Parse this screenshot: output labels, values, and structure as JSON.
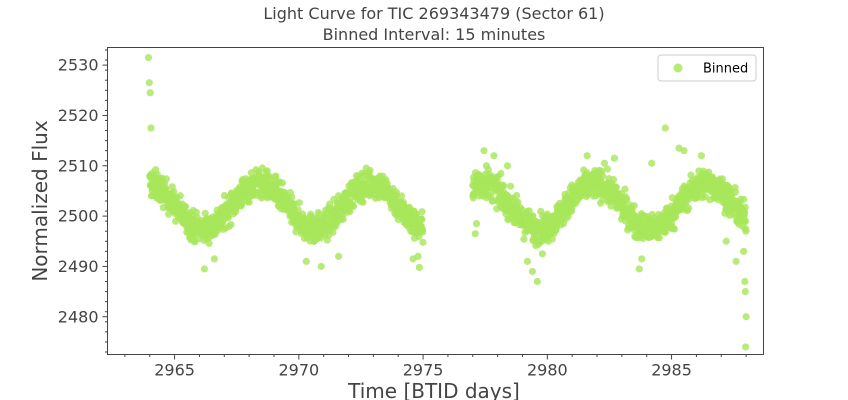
{
  "chart_data": {
    "type": "scatter",
    "title": "Light Curve for TIC 269343479 (Sector 61)",
    "subtitle": "Binned Interval: 15 minutes",
    "xlabel": "Time [BTID days]",
    "ylabel": "Normalized Flux",
    "xlim": [
      2962.3,
      2988.7
    ],
    "ylim": [
      2472.5,
      2533.5
    ],
    "xticks": [
      2965,
      2970,
      2975,
      2980,
      2985
    ],
    "yticks": [
      2480,
      2490,
      2500,
      2510,
      2520,
      2530
    ],
    "grid": false,
    "legend": {
      "position": "top-right"
    },
    "color": "#a8e65a",
    "series": [
      {
        "name": "Binned",
        "baseline": 2502,
        "amplitude": 4.5,
        "period_days": 4.5,
        "phase_peak_day": 2968.4,
        "scatter": 2.6,
        "segments": [
          [
            2964.0,
            2975.0
          ],
          [
            2977.0,
            2988.0
          ]
        ],
        "outliers": [
          [
            2963.95,
            2531.5
          ],
          [
            2963.98,
            2526.5
          ],
          [
            2964.02,
            2524.5
          ],
          [
            2964.05,
            2517.5
          ],
          [
            2964.1,
            2508.5
          ],
          [
            2974.85,
            2489.8
          ],
          [
            2974.8,
            2492.0
          ],
          [
            2977.1,
            2496.5
          ],
          [
            2977.15,
            2498.5
          ],
          [
            2977.25,
            2504.0
          ],
          [
            2977.3,
            2507.5
          ],
          [
            2977.45,
            2513.0
          ],
          [
            2977.55,
            2510.0
          ],
          [
            2977.85,
            2512.0
          ],
          [
            2978.4,
            2510.0
          ],
          [
            2979.4,
            2489.0
          ],
          [
            2979.6,
            2487.0
          ],
          [
            2979.2,
            2491.0
          ],
          [
            2979.8,
            2492.5
          ],
          [
            2981.6,
            2512.0
          ],
          [
            2982.3,
            2510.5
          ],
          [
            2982.7,
            2511.5
          ],
          [
            2983.7,
            2489.5
          ],
          [
            2983.8,
            2491.5
          ],
          [
            2984.75,
            2517.5
          ],
          [
            2984.2,
            2510.5
          ],
          [
            2985.3,
            2513.5
          ],
          [
            2985.5,
            2513.0
          ],
          [
            2986.2,
            2512.0
          ],
          [
            2987.2,
            2495.0
          ],
          [
            2987.6,
            2491.0
          ],
          [
            2987.9,
            2493.0
          ],
          [
            2987.95,
            2487.0
          ],
          [
            2987.97,
            2485.0
          ],
          [
            2988.0,
            2480.0
          ],
          [
            2987.98,
            2474.0
          ],
          [
            2970.3,
            2491.0
          ],
          [
            2970.9,
            2490.0
          ],
          [
            2966.2,
            2489.5
          ],
          [
            2966.6,
            2491.5
          ],
          [
            2971.6,
            2492.0
          ],
          [
            2974.6,
            2491.5
          ]
        ]
      }
    ]
  }
}
